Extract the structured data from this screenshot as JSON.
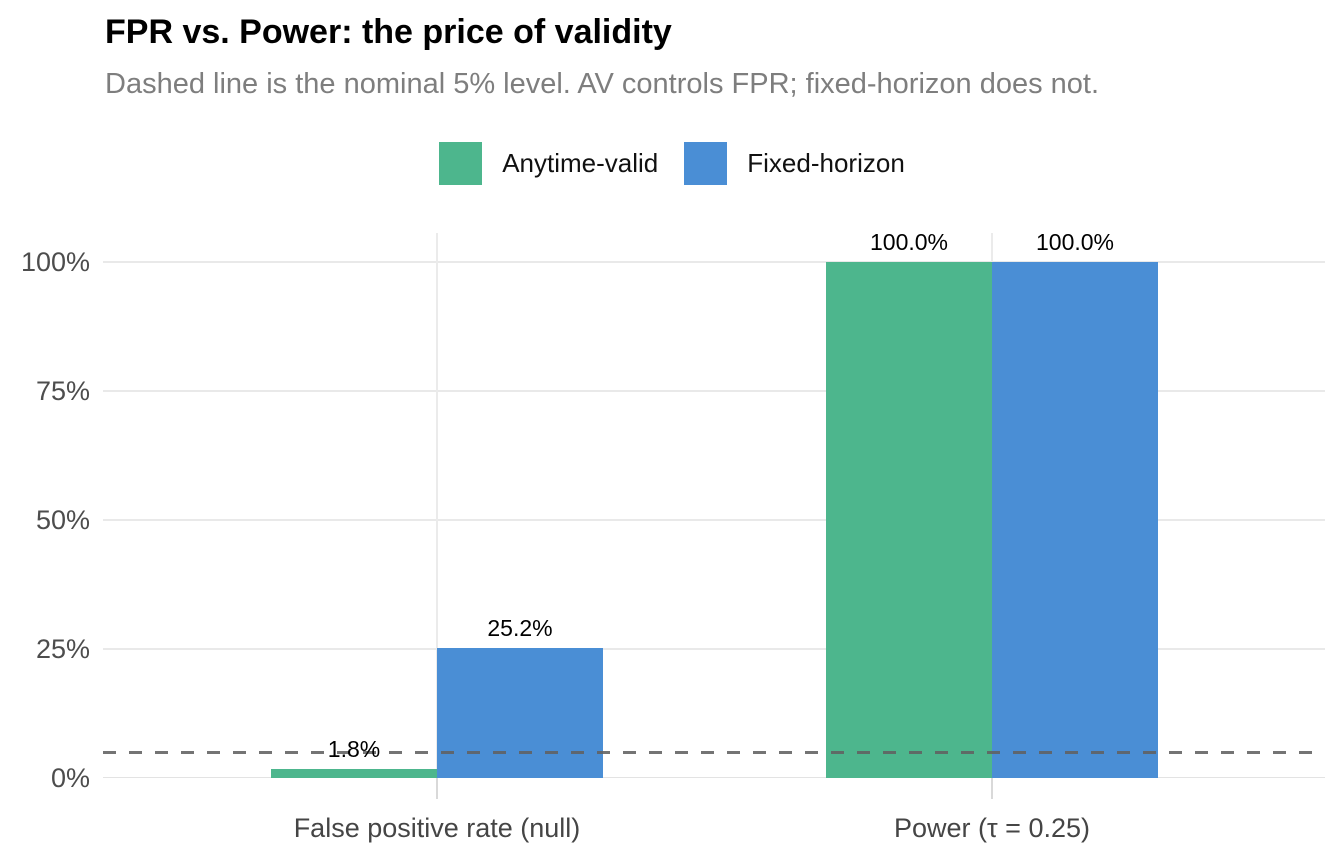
{
  "header": {
    "title": "FPR vs. Power: the price of validity",
    "subtitle": "Dashed line is the nominal 5% level. AV controls FPR; fixed-horizon does not."
  },
  "legend": {
    "position": "top",
    "items": [
      {
        "label": "Anytime-valid",
        "color": "#4DB68D"
      },
      {
        "label": "Fixed-horizon",
        "color": "#4A8ED5"
      }
    ]
  },
  "chart_data": {
    "type": "bar",
    "title": "FPR vs. Power: the price of validity",
    "subtitle": "Dashed line is the nominal 5% level. AV controls FPR; fixed-horizon does not.",
    "categories": [
      "False positive rate (null)",
      "Power (τ = 0.25)"
    ],
    "series": [
      {
        "name": "Anytime-valid",
        "color": "#4DB68D",
        "values": [
          1.8,
          100.0
        ],
        "value_labels": [
          "1.8%",
          "100.0%"
        ]
      },
      {
        "name": "Fixed-horizon",
        "color": "#4A8ED5",
        "values": [
          25.2,
          100.0
        ],
        "value_labels": [
          "25.2%",
          "100.0%"
        ]
      }
    ],
    "y_axis": {
      "tick_values": [
        0,
        25,
        50,
        75,
        100
      ],
      "tick_labels": [
        "0%",
        "25%",
        "50%",
        "75%",
        "100%"
      ],
      "ylim": [
        0,
        105.6
      ]
    },
    "reference_line": {
      "value": 5,
      "style": "dashed",
      "color": "#616161"
    },
    "grid": true,
    "legend_position": "top"
  }
}
